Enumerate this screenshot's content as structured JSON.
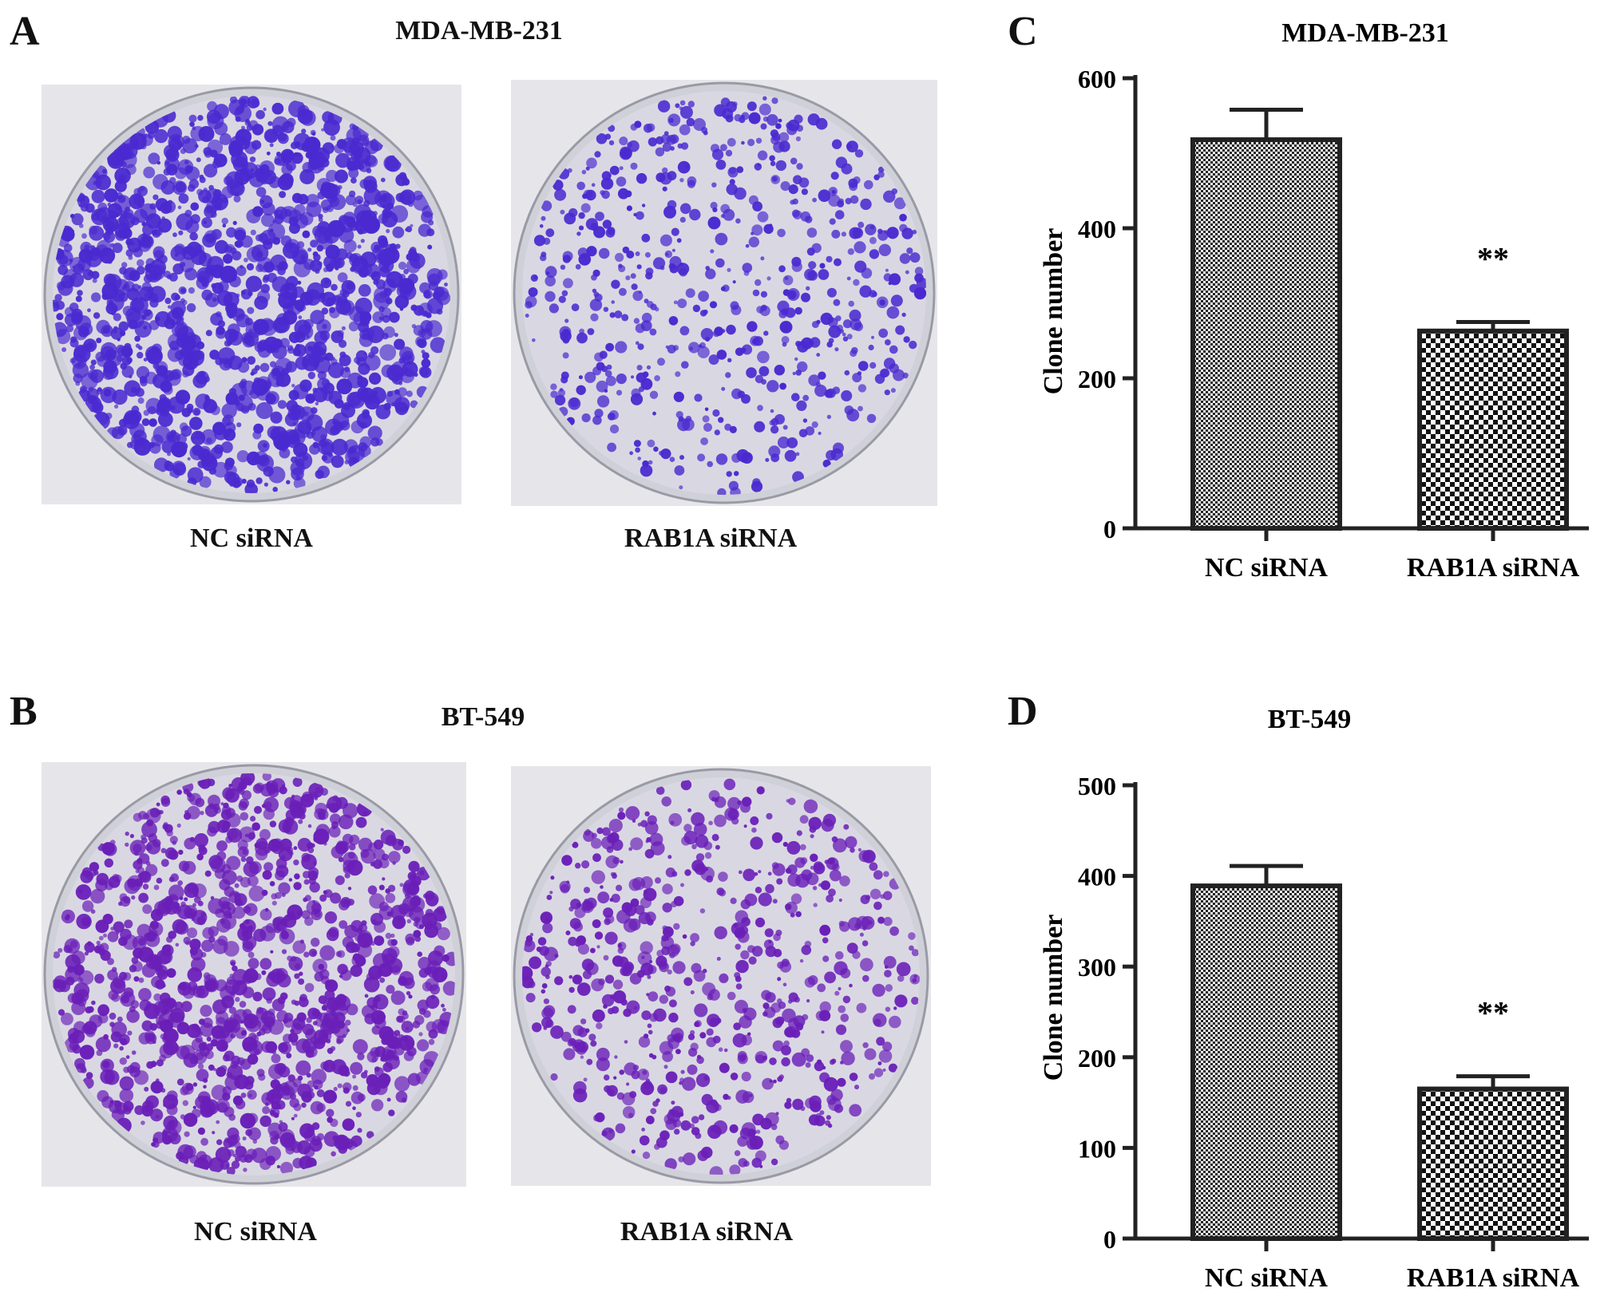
{
  "panels": {
    "a": {
      "letter": "A",
      "title": "MDA-MB-231",
      "left_caption": "NC siRNA",
      "right_caption": "RAB1A siRNA"
    },
    "b": {
      "letter": "B",
      "title": "BT-549",
      "left_caption": "NC siRNA",
      "right_caption": "RAB1A siRNA"
    },
    "c": {
      "letter": "C"
    },
    "d": {
      "letter": "D"
    }
  },
  "colors": {
    "stain_a": "#4a2ad0",
    "stain_b": "#6a1fb8",
    "dish_bg": "#d9d8e2",
    "plate_bg": "#e6e6ea"
  },
  "chart_data": [
    {
      "type": "bar",
      "title": "MDA-MB-231",
      "ylabel": "Clone number",
      "categories": [
        "NC siRNA",
        "RAB1A siRNA"
      ],
      "values": [
        518,
        263
      ],
      "errors": [
        40,
        12
      ],
      "annotations": [
        "",
        "**"
      ],
      "ylim": [
        0,
        600
      ],
      "yticks": [
        0,
        200,
        400,
        600
      ],
      "ytick_labels": [
        "0",
        "200",
        "400",
        "600"
      ],
      "grid": false
    },
    {
      "type": "bar",
      "title": "BT-549",
      "ylabel": "Clone number",
      "categories": [
        "NC siRNA",
        "RAB1A siRNA"
      ],
      "values": [
        389,
        165
      ],
      "errors": [
        22,
        14
      ],
      "annotations": [
        "",
        "**"
      ],
      "ylim": [
        0,
        500
      ],
      "yticks": [
        0,
        100,
        200,
        300,
        400,
        500
      ],
      "ytick_labels": [
        "0",
        "100",
        "200",
        "300",
        "400",
        "500"
      ],
      "grid": false
    }
  ]
}
